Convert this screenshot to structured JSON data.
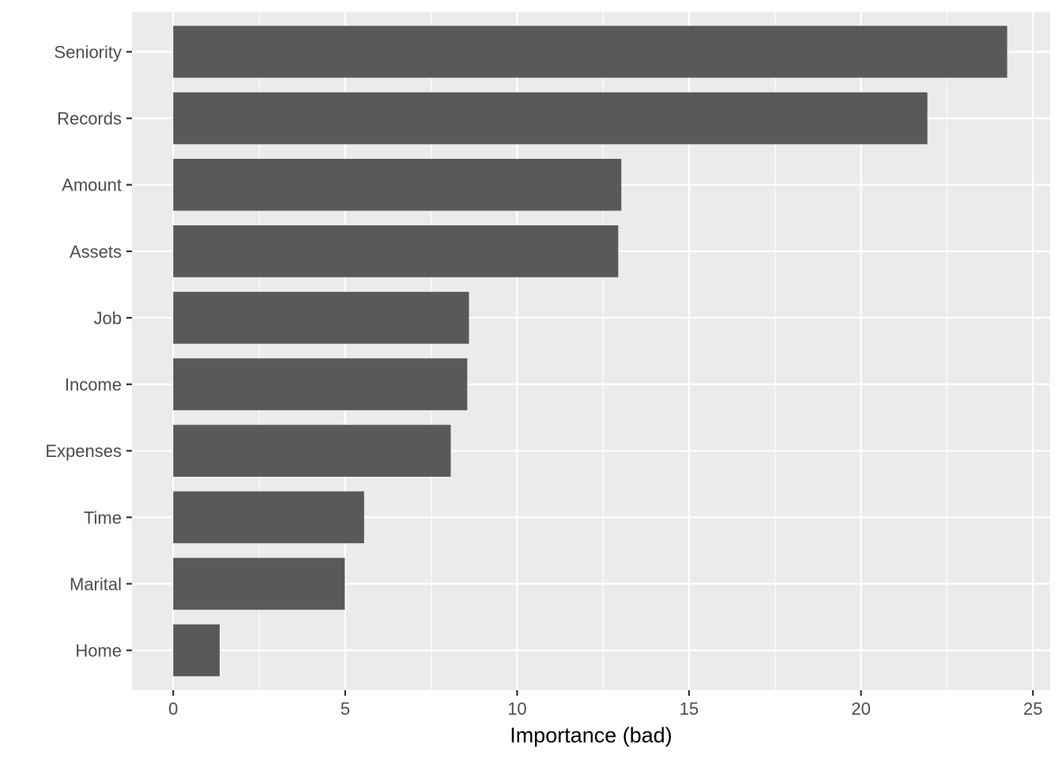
{
  "chart_data": {
    "type": "bar",
    "orientation": "horizontal",
    "categories": [
      "Seniority",
      "Records",
      "Amount",
      "Assets",
      "Job",
      "Income",
      "Expenses",
      "Time",
      "Marital",
      "Home"
    ],
    "values": [
      24.25,
      21.93,
      13.03,
      12.94,
      8.6,
      8.55,
      8.07,
      5.55,
      4.99,
      1.35
    ],
    "xlabel": "Importance (bad)",
    "ylabel": "",
    "title": "",
    "xlim": [
      -1.2,
      25.5
    ],
    "xticks": [
      0,
      5,
      10,
      15,
      20,
      25
    ],
    "xtick_labels": [
      "0",
      "5",
      "10",
      "15",
      "20",
      "25"
    ],
    "grid": true,
    "colors": {
      "panel_background": "#ebebeb",
      "grid_line": "#ffffff",
      "bar": "#595959",
      "tick_text": "#4d4d4d",
      "tick_mark": "#333333"
    }
  }
}
